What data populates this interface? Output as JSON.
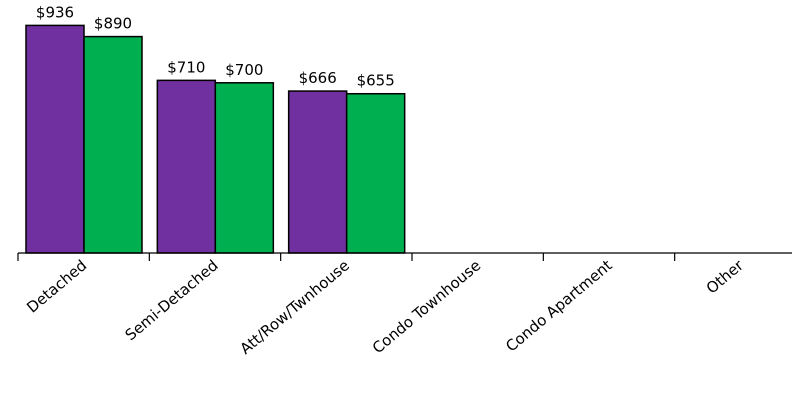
{
  "chart_data": {
    "type": "bar",
    "categories": [
      "Detached",
      "Semi-Detached",
      "Att/Row/Twnhouse",
      "Condo Townhouse",
      "Condo Apartment",
      "Other"
    ],
    "series": [
      {
        "color": "#7030A0",
        "values": [
          936,
          710,
          666,
          null,
          null,
          null
        ],
        "labels": [
          "$936",
          "$710",
          "$666",
          "",
          "",
          ""
        ]
      },
      {
        "color": "#00B050",
        "values": [
          890,
          700,
          655,
          null,
          null,
          null
        ],
        "labels": [
          "$890",
          "$700",
          "$655",
          "",
          "",
          ""
        ]
      }
    ],
    "title": "",
    "xlabel": "",
    "ylabel": "",
    "ylim": [
      0,
      950
    ],
    "grid": false,
    "legend": "none"
  }
}
